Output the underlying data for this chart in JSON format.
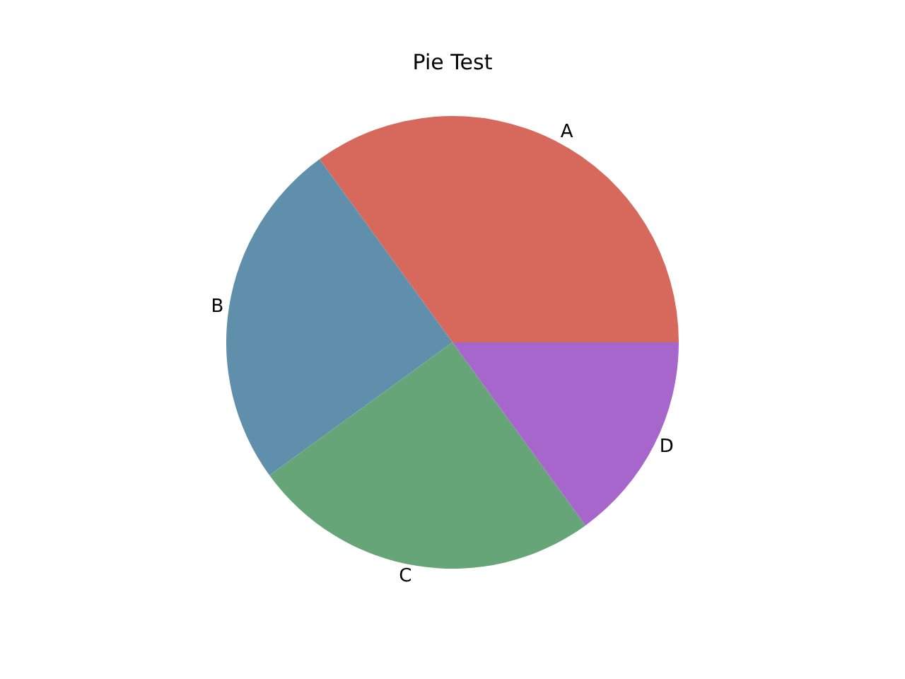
{
  "chart_data": {
    "type": "pie",
    "title": "Pie Test",
    "categories": [
      "A",
      "B",
      "C",
      "D"
    ],
    "values": [
      35,
      25,
      25,
      15
    ],
    "colors": [
      "#d6695c",
      "#5f8fab",
      "#66a578",
      "#a666cc"
    ],
    "legend": false
  }
}
